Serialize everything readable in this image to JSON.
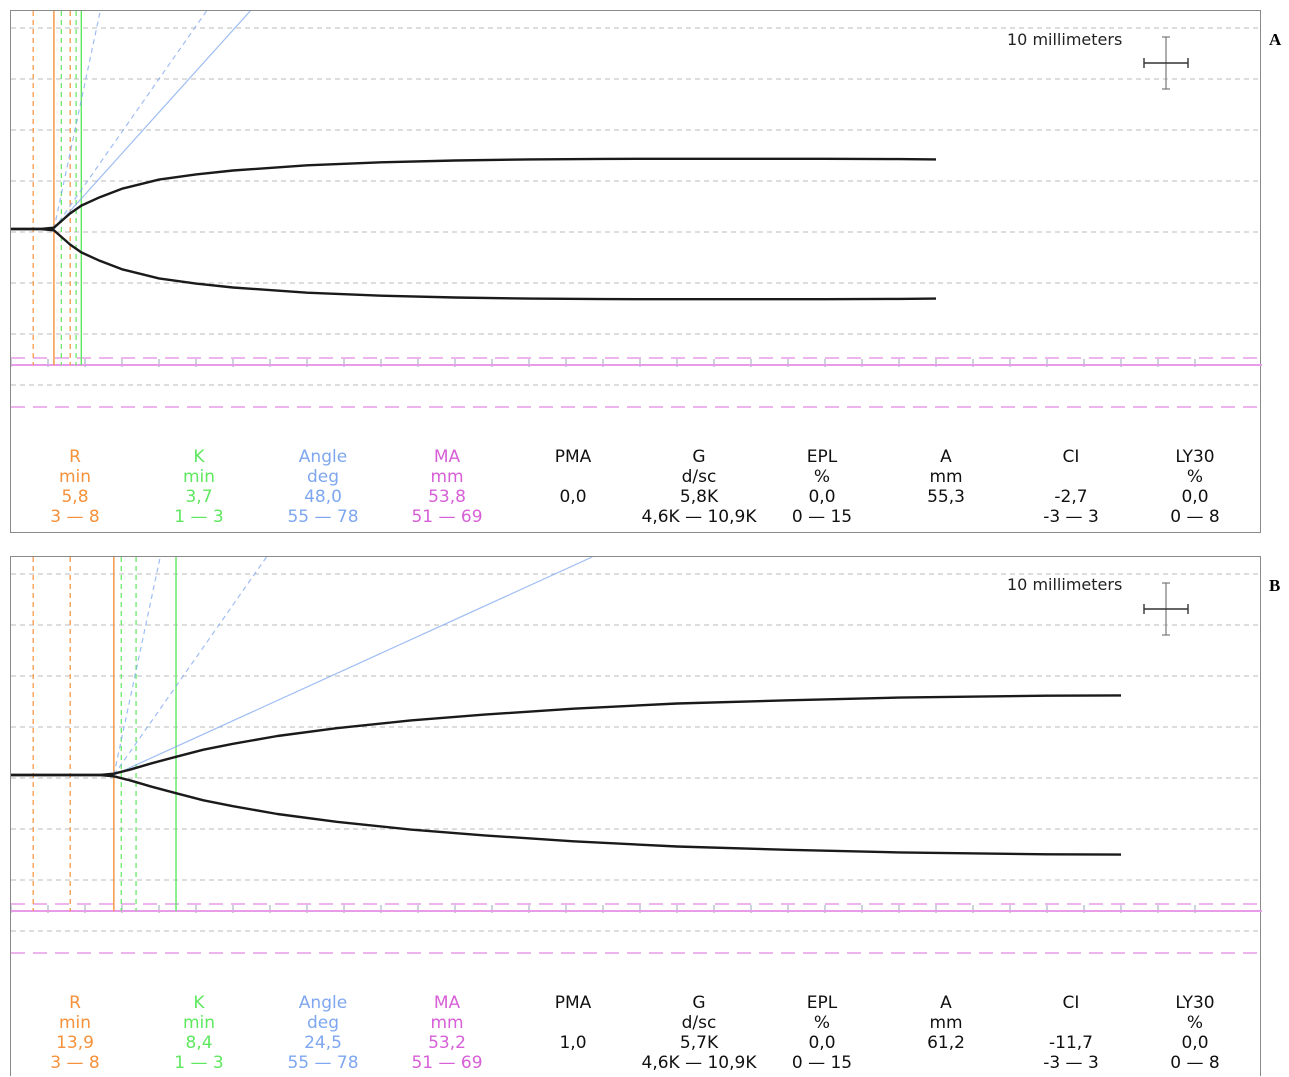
{
  "colors": {
    "r": "#f5913a",
    "k": "#5fe85f",
    "angle": "#7ea7f0",
    "ma": "#d75fd7",
    "trace": "#1a1a1a",
    "grid": "#bbbbbb",
    "ma_band": "#e89be8",
    "default": "#111111"
  },
  "panels": [
    {
      "letter": "A",
      "scale_label": "10 millimeters",
      "parameters": [
        {
          "key": "r",
          "name": "R",
          "unit": "min",
          "value": "5,8",
          "range": "3 — 8"
        },
        {
          "key": "k",
          "name": "K",
          "unit": "min",
          "value": "3,7",
          "range": "1 — 3"
        },
        {
          "key": "angle",
          "name": "Angle",
          "unit": "deg",
          "value": "48,0",
          "range": "55 — 78"
        },
        {
          "key": "ma",
          "name": "MA",
          "unit": "mm",
          "value": "53,8",
          "range": "51 — 69"
        },
        {
          "key": "pma",
          "name": "PMA",
          "unit": "",
          "value": "0,0",
          "range": ""
        },
        {
          "key": "g",
          "name": "G",
          "unit": "d/sc",
          "value": "5,8K",
          "range": "4,6K — 10,9K"
        },
        {
          "key": "epl",
          "name": "EPL",
          "unit": "%",
          "value": "0,0",
          "range": "0 — 15"
        },
        {
          "key": "a",
          "name": "A",
          "unit": "mm",
          "value": "55,3",
          "range": ""
        },
        {
          "key": "ci",
          "name": "CI",
          "unit": "",
          "value": "-2,7",
          "range": "-3 — 3"
        },
        {
          "key": "ly30",
          "name": "LY30",
          "unit": "%",
          "value": "0,0",
          "range": "0 — 8"
        }
      ]
    },
    {
      "letter": "B",
      "scale_label": "10 millimeters",
      "parameters": [
        {
          "key": "r",
          "name": "R",
          "unit": "min",
          "value": "13,9",
          "range": "3 — 8"
        },
        {
          "key": "k",
          "name": "K",
          "unit": "min",
          "value": "8,4",
          "range": "1 — 3"
        },
        {
          "key": "angle",
          "name": "Angle",
          "unit": "deg",
          "value": "24,5",
          "range": "55 — 78"
        },
        {
          "key": "ma",
          "name": "MA",
          "unit": "mm",
          "value": "53,2",
          "range": "51 — 69"
        },
        {
          "key": "pma",
          "name": "PMA",
          "unit": "",
          "value": "1,0",
          "range": ""
        },
        {
          "key": "g",
          "name": "G",
          "unit": "d/sc",
          "value": "5,7K",
          "range": "4,6K — 10,9K"
        },
        {
          "key": "epl",
          "name": "EPL",
          "unit": "%",
          "value": "0,0",
          "range": "0 — 15"
        },
        {
          "key": "a",
          "name": "A",
          "unit": "mm",
          "value": "61,2",
          "range": ""
        },
        {
          "key": "ci",
          "name": "CI",
          "unit": "",
          "value": "-11,7",
          "range": "-3 — 3"
        },
        {
          "key": "ly30",
          "name": "LY30",
          "unit": "%",
          "value": "0,0",
          "range": "0 — 8"
        }
      ]
    }
  ],
  "chart_data": [
    {
      "type": "line",
      "title": "A",
      "xlabel": "",
      "ylabel": "",
      "grid": true,
      "x_unit": "min",
      "r_normal_range": [
        3,
        8
      ],
      "k_normal_range": [
        1,
        3
      ],
      "angle_normal_range": [
        55,
        78
      ],
      "ma_normal_range": [
        51,
        69
      ],
      "r": 5.8,
      "k": 3.7,
      "angle": 48.0,
      "ma": 53.8,
      "a": 55.3,
      "series": [
        {
          "x": [
            0,
            4,
            5.8,
            7,
            8,
            9.5,
            12,
            15,
            20,
            25,
            30,
            40,
            50,
            60,
            70,
            80,
            90,
            100,
            110,
            120,
            125
          ],
          "y": [
            0,
            0,
            1.0,
            7.0,
            12.0,
            18.0,
            24.5,
            31.0,
            38.0,
            42.0,
            45.0,
            49.0,
            51.3,
            52.7,
            53.5,
            53.9,
            54.0,
            54.0,
            54.0,
            53.8,
            53.5
          ]
        }
      ]
    },
    {
      "type": "line",
      "title": "B",
      "xlabel": "",
      "ylabel": "",
      "grid": true,
      "x_unit": "min",
      "r_normal_range": [
        3,
        8
      ],
      "k_normal_range": [
        1,
        3
      ],
      "angle_normal_range": [
        55,
        78
      ],
      "ma_normal_range": [
        51,
        69
      ],
      "r": 13.9,
      "k": 8.4,
      "angle": 24.5,
      "ma": 53.2,
      "a": 61.2,
      "series": [
        {
          "x": [
            0,
            12,
            13.9,
            16,
            19,
            22.3,
            26,
            30,
            36,
            44,
            54,
            64,
            76,
            90,
            105,
            120,
            140,
            150
          ],
          "y": [
            0,
            0,
            1.0,
            4.0,
            9.0,
            14.0,
            19.5,
            24.0,
            30.0,
            36.0,
            42.0,
            46.5,
            51.0,
            55.0,
            57.5,
            59.5,
            61.0,
            61.2
          ]
        }
      ]
    }
  ]
}
